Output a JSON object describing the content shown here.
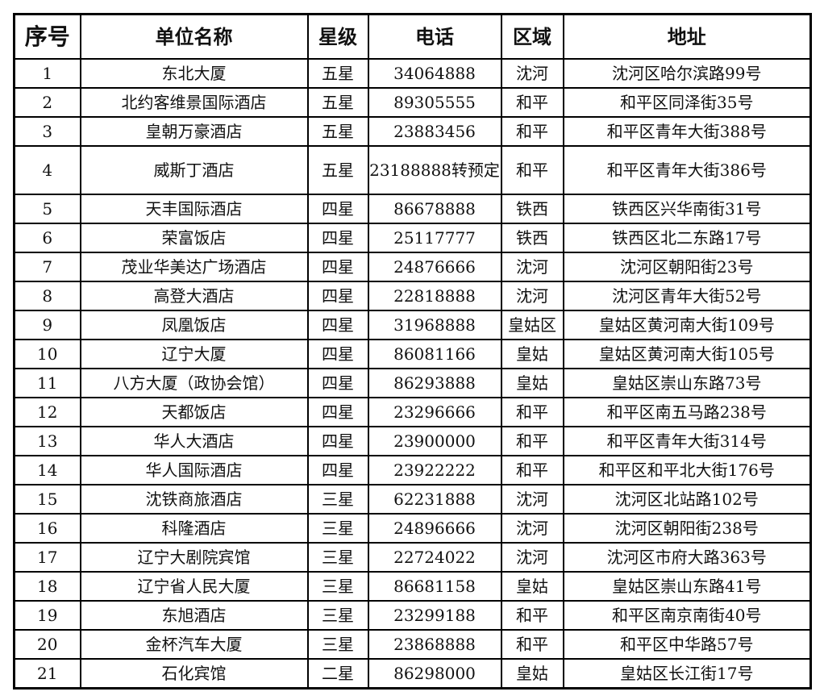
{
  "headers": [
    "序号",
    "单位名称",
    "星级",
    "电话",
    "区域",
    "地址"
  ],
  "rows": [
    [
      "1",
      "东北大厦",
      "五星",
      "34064888",
      "沈河",
      "沈河区哈尔滨路99号"
    ],
    [
      "2",
      "北约客维景国际酒店",
      "五星",
      "89305555",
      "和平",
      "和平区同泽街35号"
    ],
    [
      "3",
      "皇朝万豪酒店",
      "五星",
      "23883456",
      "和平",
      "和平区青年大街388号"
    ],
    [
      "4",
      "威斯丁酒店",
      "五星",
      "23188888转预定",
      "和平",
      "和平区青年大街386号"
    ],
    [
      "5",
      "天丰国际酒店",
      "四星",
      "86678888",
      "铁西",
      "铁西区兴华南街31号"
    ],
    [
      "6",
      "荣富饭店",
      "四星",
      "25117777",
      "铁西",
      "铁西区北二东路17号"
    ],
    [
      "7",
      "茂业华美达广场酒店",
      "四星",
      "24876666",
      "沈河",
      "沈河区朝阳街23号"
    ],
    [
      "8",
      "高登大酒店",
      "四星",
      "22818888",
      "沈河",
      "沈河区青年大街52号"
    ],
    [
      "9",
      "凤凰饭店",
      "四星",
      "31968888",
      "皇姑区",
      "皇姑区黄河南大街109号"
    ],
    [
      "10",
      "辽宁大厦",
      "四星",
      "86081166",
      "皇姑",
      "皇姑区黄河南大街105号"
    ],
    [
      "11",
      "八方大厦（政协会馆）",
      "四星",
      "86293888",
      "皇姑",
      "皇姑区崇山东路73号"
    ],
    [
      "12",
      "天都饭店",
      "四星",
      "23296666",
      "和平",
      "和平区南五马路238号"
    ],
    [
      "13",
      "华人大酒店",
      "四星",
      "23900000",
      "和平",
      "和平区青年大街314号"
    ],
    [
      "14",
      "华人国际酒店",
      "四星",
      "23922222",
      "和平",
      "和平区和平北大街176号"
    ],
    [
      "15",
      "沈铁商旅酒店",
      "三星",
      "62231888",
      "沈河",
      "沈河区北站路102号"
    ],
    [
      "16",
      "科隆酒店",
      "三星",
      "24896666",
      "沈河",
      "沈河区朝阳街238号"
    ],
    [
      "17",
      "辽宁大剧院宾馆",
      "三星",
      "22724022",
      "沈河",
      "沈河区市府大路363号"
    ],
    [
      "18",
      "辽宁省人民大厦",
      "三星",
      "86681158",
      "皇姑",
      "皇姑区崇山东路41号"
    ],
    [
      "19",
      "东旭酒店",
      "三星",
      "23299188",
      "和平",
      "和平区南京南街40号"
    ],
    [
      "20",
      "金杯汽车大厦",
      "三星",
      "23868888",
      "和平",
      "和平区中华路57号"
    ],
    [
      "21",
      "石化宾馆",
      "二星",
      "86298000",
      "皇姑",
      "皇姑区长江街17号"
    ]
  ]
}
